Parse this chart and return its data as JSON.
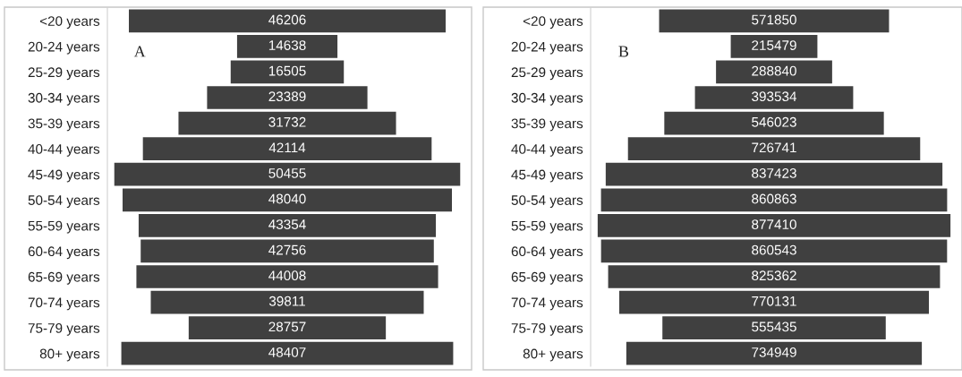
{
  "chart_data": [
    {
      "type": "other",
      "data_labels": true,
      "color": "#404040",
      "annotations": [
        "A"
      ],
      "categories": [
        "<20 years",
        "20-24 years",
        "25-29 years",
        "30-34 years",
        "35-39 years",
        "40-44 years",
        "45-49 years",
        "50-54 years",
        "55-59 years",
        "60-64 years",
        "65-69 years",
        "70-74 years",
        "75-79 years",
        "80+ years"
      ],
      "values": [
        46206,
        14638,
        16505,
        23389,
        31732,
        42114,
        50455,
        48040,
        43354,
        42756,
        44008,
        39811,
        28757,
        48407
      ]
    },
    {
      "type": "other",
      "data_labels": true,
      "color": "#404040",
      "annotations": [
        "B"
      ],
      "categories": [
        "<20 years",
        "20-24 years",
        "25-29 years",
        "30-34 years",
        "35-39 years",
        "40-44 years",
        "45-49 years",
        "50-54 years",
        "55-59 years",
        "60-64 years",
        "65-69 years",
        "70-74 years",
        "75-79 years",
        "80+ years"
      ],
      "values": [
        571850,
        215479,
        288840,
        393534,
        546023,
        726741,
        837423,
        860863,
        877410,
        860543,
        825362,
        770131,
        555435,
        734949
      ]
    }
  ]
}
